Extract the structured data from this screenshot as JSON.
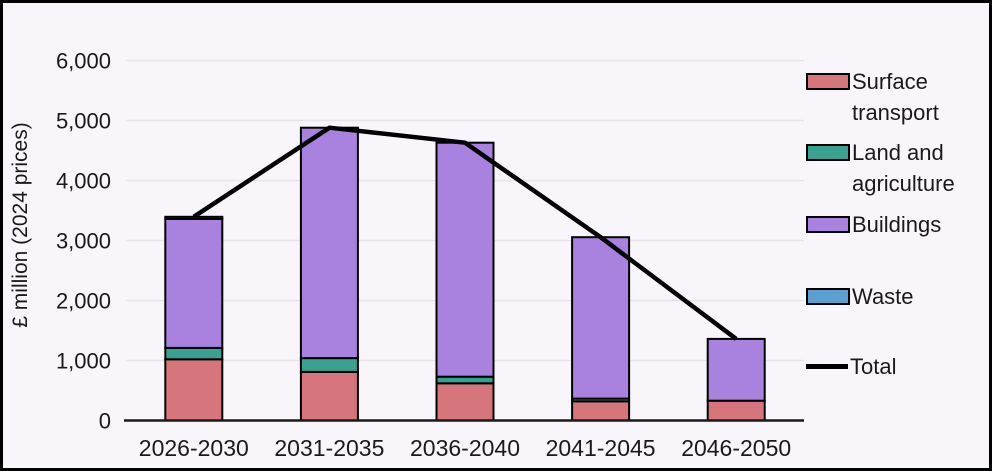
{
  "figure": {
    "background": "#F8F6FB",
    "border_color": "#000000",
    "text_color": "#1A1A1A",
    "gridline_color": "#E6E4EA",
    "axis_color": "#1A1A1A"
  },
  "y_axis": {
    "title": "£ million (2024 prices)",
    "tick_labels": [
      "0",
      "1,000",
      "2,000",
      "3,000",
      "4,000",
      "5,000",
      "6,000"
    ],
    "tick_values": [
      0,
      1000,
      2000,
      3000,
      4000,
      5000,
      6000
    ]
  },
  "x_axis": {
    "categories": [
      "2026-2030",
      "2031-2035",
      "2036-2040",
      "2041-2045",
      "2046-2050"
    ]
  },
  "legend": {
    "items": [
      {
        "label": "Surface transport",
        "color": "#D6757B",
        "type": "box"
      },
      {
        "label": "Land and agriculture",
        "color": "#3AA08F",
        "type": "box"
      },
      {
        "label": "Buildings",
        "color": "#A981DE",
        "type": "box"
      },
      {
        "label": "Waste",
        "color": "#5B9FD1",
        "type": "box"
      },
      {
        "label": "Total",
        "color": "#000000",
        "type": "line"
      }
    ]
  },
  "chart_data": {
    "type": "bar",
    "subtype": "stacked-bars-with-total-line",
    "title": "",
    "xlabel": "",
    "ylabel": "£ million (2024 prices)",
    "ylim": [
      0,
      6000
    ],
    "grid": true,
    "legend_position": "right",
    "categories": [
      "2026-2030",
      "2031-2035",
      "2036-2040",
      "2041-2045",
      "2046-2050"
    ],
    "series": [
      {
        "name": "Surface transport",
        "color": "#D6757B",
        "values": [
          1020,
          810,
          620,
          320,
          330
        ]
      },
      {
        "name": "Land and agriculture",
        "color": "#3AA08F",
        "values": [
          190,
          230,
          110,
          45,
          0
        ]
      },
      {
        "name": "Buildings",
        "color": "#A981DE",
        "values": [
          2150,
          3840,
          3900,
          2690,
          1030
        ]
      },
      {
        "name": "Waste",
        "color": "#5B9FD1",
        "values": [
          35,
          0,
          0,
          0,
          0
        ]
      }
    ],
    "line_series": {
      "name": "Total",
      "color": "#000000",
      "values": [
        3395,
        4880,
        4630,
        3055,
        1360
      ]
    }
  }
}
